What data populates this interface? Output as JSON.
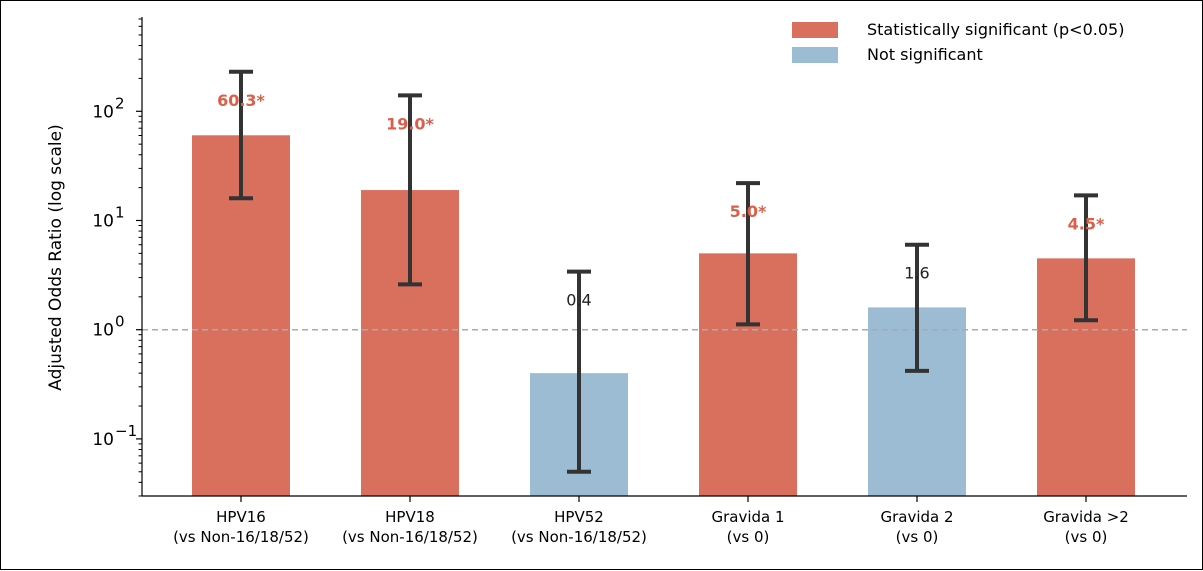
{
  "chart_data": {
    "type": "bar",
    "scale": "log",
    "ylabel": "Adjusted Odds Ratio (log scale)",
    "xlabel": "",
    "title": "",
    "ylim": [
      0.03,
      700
    ],
    "yticks": [
      {
        "value": 0.1,
        "base": "10",
        "exp": "−1"
      },
      {
        "value": 1,
        "base": "10",
        "exp": "0"
      },
      {
        "value": 10,
        "base": "10",
        "exp": "1"
      },
      {
        "value": 100,
        "base": "10",
        "exp": "2"
      }
    ],
    "reference_line": 1,
    "categories": [
      {
        "line1": "HPV16",
        "line2": "(vs Non-16/18/52)"
      },
      {
        "line1": "HPV18",
        "line2": "(vs Non-16/18/52)"
      },
      {
        "line1": "HPV52",
        "line2": "(vs Non-16/18/52)"
      },
      {
        "line1": "Gravida 1",
        "line2": "(vs 0)"
      },
      {
        "line1": "Gravida 2",
        "line2": "(vs 0)"
      },
      {
        "line1": "Gravida >2",
        "line2": "(vs 0)"
      }
    ],
    "values": [
      60.3,
      19.0,
      0.4,
      5.0,
      1.6,
      4.5
    ],
    "ci_lower": [
      16,
      2.6,
      0.05,
      1.12,
      0.42,
      1.22
    ],
    "ci_upper": [
      230,
      140,
      3.4,
      22,
      6,
      17
    ],
    "significant": [
      true,
      true,
      false,
      true,
      false,
      true
    ],
    "value_labels": [
      "60.3*",
      "19.0*",
      "0.4",
      "5.0*",
      "1.6",
      "4.5*"
    ],
    "legend": {
      "placement": "top-right",
      "entries": [
        {
          "label": "Statistically significant (p<0.05)",
          "color": "#d9705e"
        },
        {
          "label": "Not significant",
          "color": "#9bbcd3"
        }
      ]
    },
    "colors": {
      "significant": "#d9705e",
      "not_significant": "#9bbcd3",
      "errorbar": "#333333",
      "refline": "#aaaaaa",
      "sig_label": "#d9604b"
    }
  }
}
